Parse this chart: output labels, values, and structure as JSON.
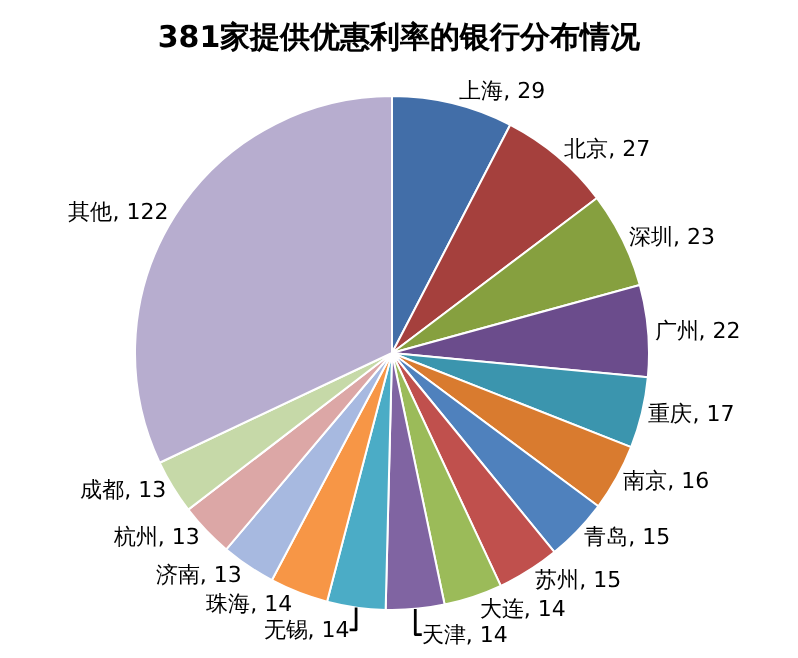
{
  "chart_data": {
    "type": "pie",
    "title": "381家提供优惠利率的银行分布情况",
    "categories": [
      "上海, 29",
      "北京, 27",
      "深圳, 23",
      "广州, 22",
      "重庆, 17",
      "南京, 16",
      "青岛, 15",
      "苏州, 15",
      "大连, 14",
      "天津, 14",
      "无锡, 14",
      "珠海, 14",
      "济南, 13",
      "杭州, 13",
      "成都, 13",
      "其他, 122"
    ],
    "values": [
      29,
      27,
      23,
      22,
      17,
      16,
      15,
      15,
      14,
      14,
      14,
      14,
      13,
      13,
      13,
      122
    ],
    "colors": [
      "#426ea8",
      "#a5403d",
      "#86a03f",
      "#6b4c8c",
      "#3b95ae",
      "#d97b2f",
      "#4f81bd",
      "#c0504d",
      "#9bbb59",
      "#8064a2",
      "#4bacc6",
      "#f79646",
      "#a7b9e0",
      "#dca7a6",
      "#c6d9a8",
      "#b7adcf"
    ]
  }
}
